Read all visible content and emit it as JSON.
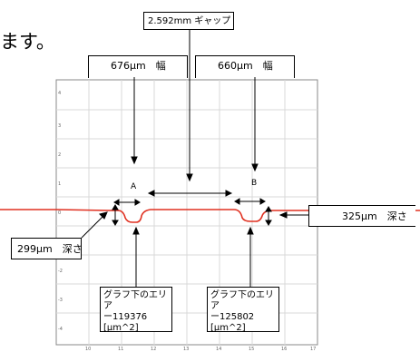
{
  "header": {
    "text_fragment": "ます。"
  },
  "gap": {
    "label": "2.592mm ギャップ"
  },
  "widths": {
    "left": "676μm　幅",
    "right": "660μm　幅"
  },
  "depths": {
    "left": "299μm　深さ",
    "right": "325μm　深さ"
  },
  "points": {
    "a": "A",
    "b": "B"
  },
  "areas": [
    {
      "line1": "グラフ下のエリア",
      "line2": "ー119376",
      "line3": "[μm^2]"
    },
    {
      "line1": "グラフ下のエリア",
      "line2": "ー125802",
      "line3": "[μm^2]"
    }
  ],
  "axis": {
    "x_ticks": [
      "10",
      "11",
      "12",
      "13",
      "14",
      "15",
      "16",
      "17"
    ],
    "y_ticks": [
      "4",
      "3",
      "2",
      "1",
      "0",
      "-1",
      "-2",
      "-3",
      "-4"
    ]
  },
  "colors": {
    "profile_line": "#e03020",
    "grid": "#d8d8d8"
  }
}
